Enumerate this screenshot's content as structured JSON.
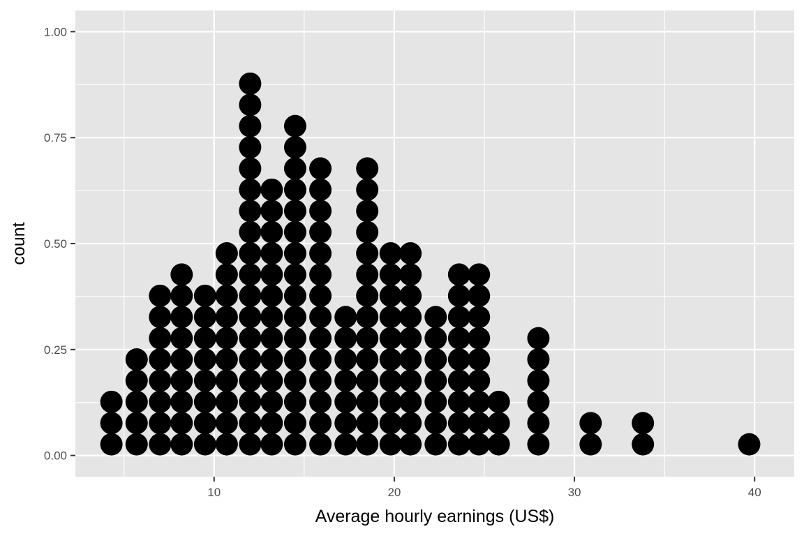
{
  "chart_data": {
    "type": "dotplot",
    "title": "",
    "xlabel": "Average hourly earnings (US$)",
    "ylabel": "count",
    "xlim": [
      2.3,
      42.2
    ],
    "ylim": [
      -0.05,
      1.05
    ],
    "x_ticks": [
      10,
      20,
      30,
      40
    ],
    "y_ticks": [
      0.0,
      0.25,
      0.5,
      0.75,
      1.0
    ],
    "y_tick_labels": [
      "0.00",
      "0.25",
      "0.50",
      "0.75",
      "1.00"
    ],
    "x_minor_gridlines": [
      5,
      15,
      25,
      35
    ],
    "y_minor_gridlines": [
      0.125,
      0.375,
      0.625,
      0.875
    ],
    "grid": true,
    "panel_background": "#e5e5e5",
    "grid_color": "#ffffff",
    "dot_color": "#000000",
    "stacks": [
      {
        "x": 4.3,
        "count": 3
      },
      {
        "x": 5.7,
        "count": 5
      },
      {
        "x": 7.0,
        "count": 8
      },
      {
        "x": 8.2,
        "count": 9
      },
      {
        "x": 9.5,
        "count": 8
      },
      {
        "x": 10.7,
        "count": 10
      },
      {
        "x": 12.0,
        "count": 18
      },
      {
        "x": 13.2,
        "count": 13
      },
      {
        "x": 14.5,
        "count": 16
      },
      {
        "x": 15.9,
        "count": 14
      },
      {
        "x": 17.3,
        "count": 7
      },
      {
        "x": 18.5,
        "count": 14
      },
      {
        "x": 19.8,
        "count": 10
      },
      {
        "x": 20.9,
        "count": 10
      },
      {
        "x": 22.3,
        "count": 7
      },
      {
        "x": 23.6,
        "count": 9
      },
      {
        "x": 24.7,
        "count": 9
      },
      {
        "x": 25.8,
        "count": 3
      },
      {
        "x": 28.0,
        "count": 6
      },
      {
        "x": 30.9,
        "count": 2
      },
      {
        "x": 33.8,
        "count": 2
      },
      {
        "x": 39.7,
        "count": 1
      }
    ]
  }
}
